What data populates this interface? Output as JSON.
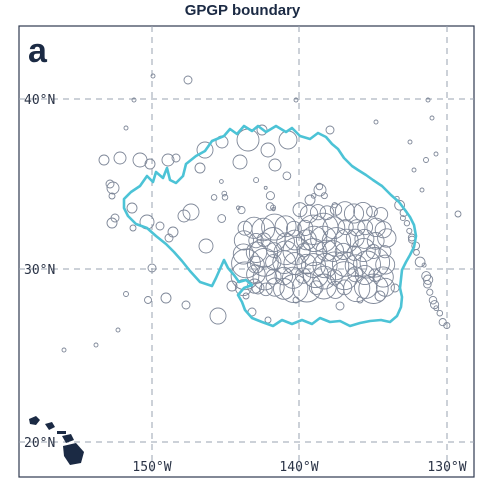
{
  "title": "GPGP boundary",
  "panel_label": "a",
  "lat_labels": [
    "40°N",
    "30°N",
    "20°N"
  ],
  "lon_labels": [
    "150°W",
    "140°W",
    "130°W"
  ],
  "colors": {
    "boundary": "#4cc3d6",
    "circles": "#7e8798",
    "grid": "#9aa3b0",
    "frame": "#2f3a4f",
    "land": "#1b2a44",
    "text": "#1b2a44"
  }
}
